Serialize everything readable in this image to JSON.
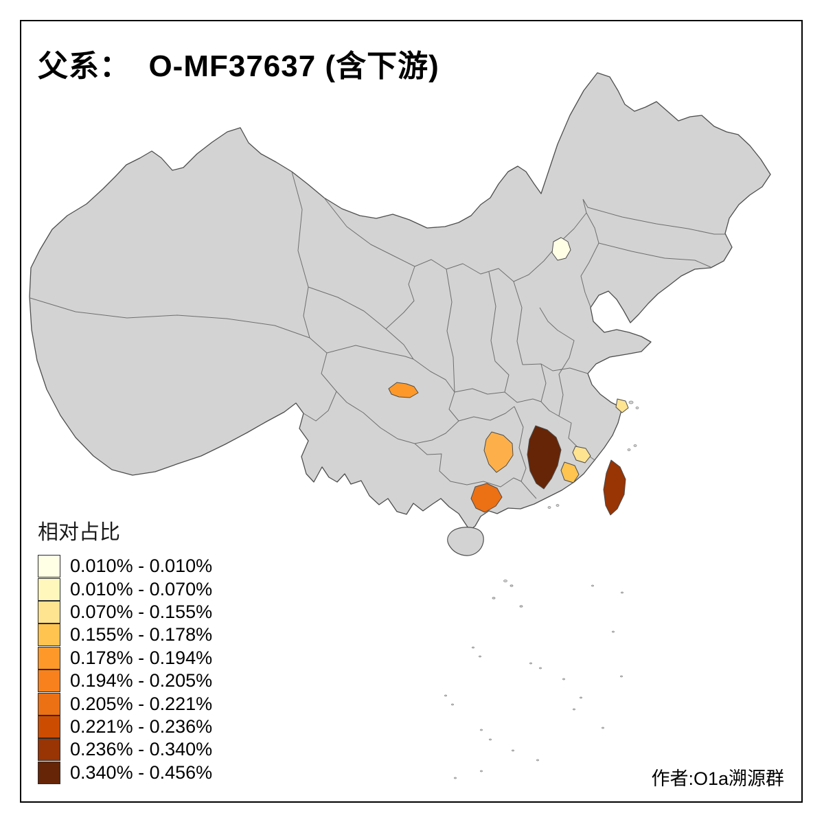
{
  "title": "父系：  O-MF37637 (含下游)",
  "attribution": "作者:O1a溯源群",
  "legend": {
    "title": "相对占比",
    "items": [
      {
        "range": "0.010% - 0.010%",
        "color": "#FFFFE5"
      },
      {
        "range": "0.010% - 0.070%",
        "color": "#FFF7BC"
      },
      {
        "range": "0.070% - 0.155%",
        "color": "#FEE391"
      },
      {
        "range": "0.155% - 0.178%",
        "color": "#FEC44F"
      },
      {
        "range": "0.178% - 0.194%",
        "color": "#FE9929"
      },
      {
        "range": "0.194% - 0.205%",
        "color": "#F8811E"
      },
      {
        "range": "0.205% - 0.221%",
        "color": "#EC7014"
      },
      {
        "range": "0.221% - 0.236%",
        "color": "#CC4C02"
      },
      {
        "range": "0.236% - 0.340%",
        "color": "#993404"
      },
      {
        "range": "0.340% - 0.456%",
        "color": "#662506"
      }
    ]
  },
  "map": {
    "land_fill": "#D3D3D3",
    "border_color": "#5A5A5A",
    "regions": {
      "beijing": {
        "label": "Beijing",
        "color": "#FFFFE5"
      },
      "shanghai": {
        "label": "Shanghai",
        "color": "#FEE391"
      },
      "chengdu": {
        "label": "Chengdu (Sichuan)",
        "color": "#FE9929"
      },
      "guizhou": {
        "label": "Guizhou",
        "color": "#FDB04A"
      },
      "guangxi": {
        "label": "Guangxi",
        "color": "#EC7014"
      },
      "jiangxi": {
        "label": "Jiangxi",
        "color": "#662506"
      },
      "guangdong_north": {
        "label": "Guangdong (north)",
        "color": "#FEE391"
      },
      "guangdong_south": {
        "label": "Guangdong (south)",
        "color": "#FEC44F"
      },
      "taiwan": {
        "label": "Taiwan",
        "color": "#993404"
      }
    }
  }
}
